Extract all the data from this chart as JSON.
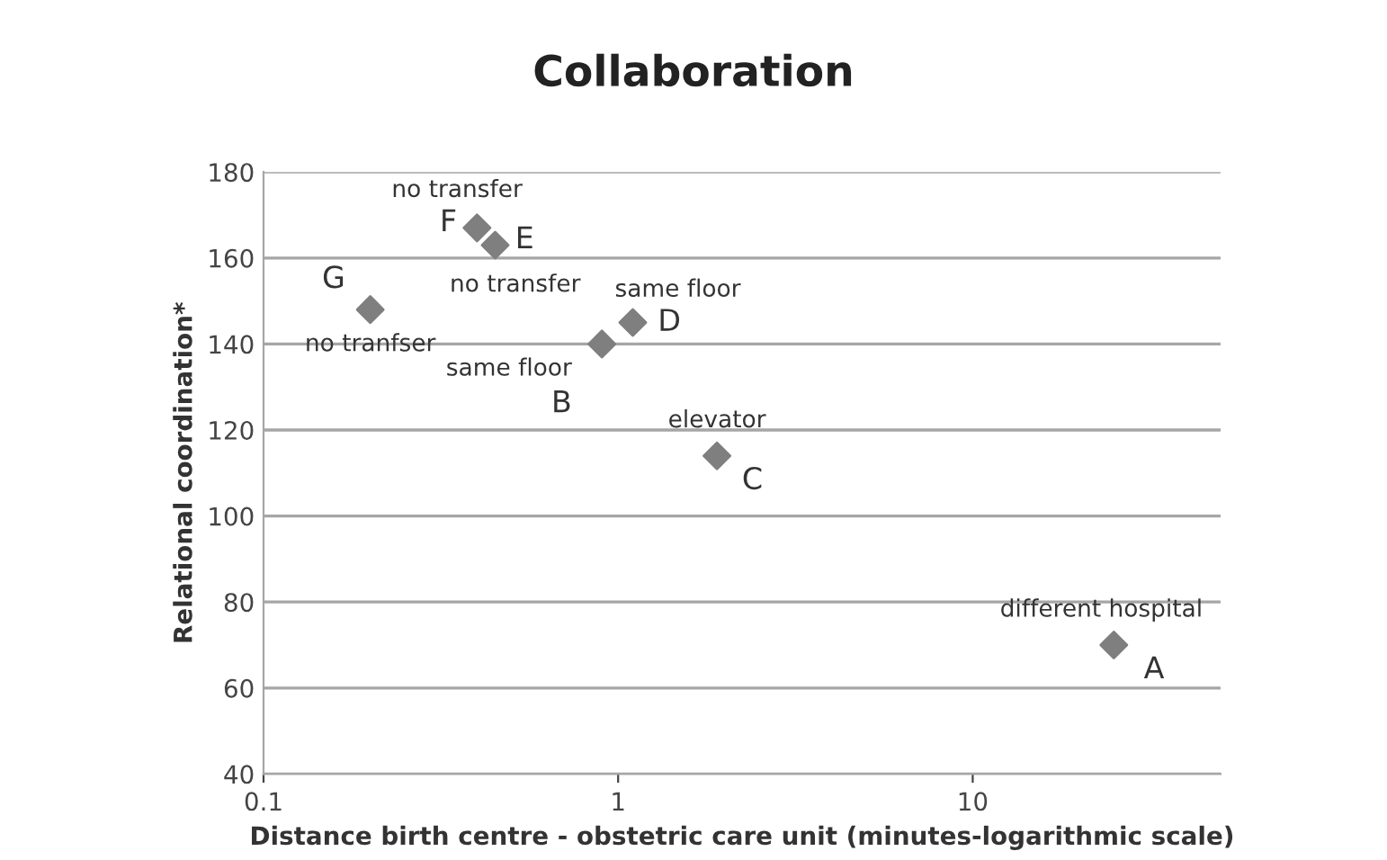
{
  "chart_data": {
    "type": "scatter",
    "title": "Collaboration",
    "xlabel": "Distance birth centre - obstetric care unit (minutes-logarithmic scale)",
    "ylabel": "Relational coordination*",
    "x": [
      25,
      0.9,
      1.9,
      1.1,
      0.45,
      0.4,
      0.2
    ],
    "series": [
      {
        "color": "#7f7f7f",
        "values": [
          70,
          140,
          114,
          145,
          163,
          167,
          148
        ]
      }
    ],
    "log": "x",
    "xlim": [
      0.1,
      50
    ],
    "xticks": [
      0.1,
      1,
      10
    ],
    "ylim": [
      40,
      180
    ],
    "yticks": [
      40,
      60,
      80,
      100,
      120,
      140,
      160,
      180
    ],
    "grid": "y",
    "marker": "diamond",
    "legend": false,
    "annotations": [
      {
        "text": "A",
        "x": 25,
        "y": 70
      },
      {
        "text": "different hospital",
        "x": 25,
        "y": 70
      },
      {
        "text": "B",
        "x": 0.9,
        "y": 140
      },
      {
        "text": "same floor",
        "x": 0.9,
        "y": 140
      },
      {
        "text": "C",
        "x": 1.9,
        "y": 114
      },
      {
        "text": "elevator",
        "x": 1.9,
        "y": 114
      },
      {
        "text": "D",
        "x": 1.1,
        "y": 145
      },
      {
        "text": "same floor",
        "x": 1.1,
        "y": 145
      },
      {
        "text": "E",
        "x": 0.45,
        "y": 163
      },
      {
        "text": "no transfer",
        "x": 0.45,
        "y": 163
      },
      {
        "text": "F",
        "x": 0.4,
        "y": 167
      },
      {
        "text": "no transfer",
        "x": 0.4,
        "y": 167
      },
      {
        "text": "G",
        "x": 0.2,
        "y": 148
      },
      {
        "text": "no tranfser",
        "x": 0.2,
        "y": 148
      }
    ]
  }
}
